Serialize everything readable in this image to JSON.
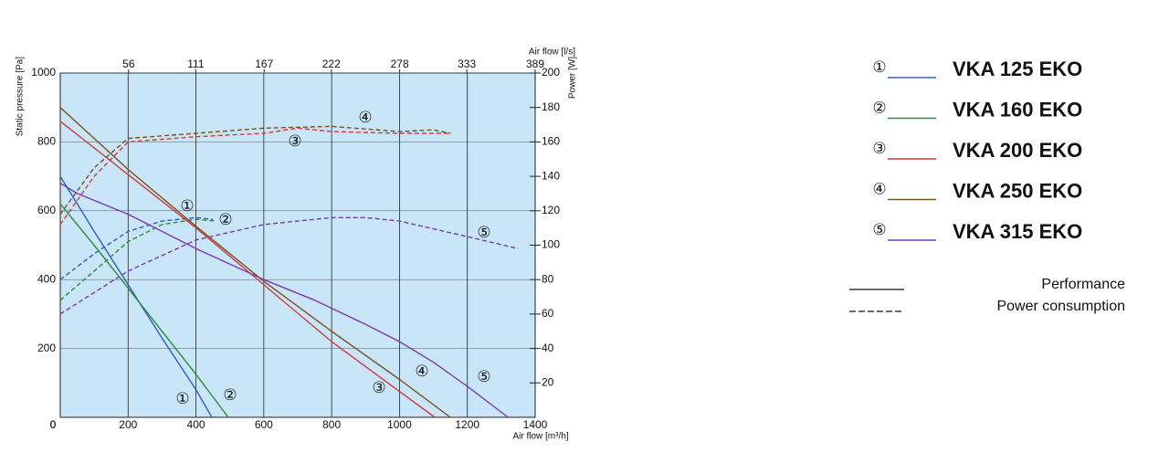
{
  "chart_data": {
    "type": "line",
    "x_label": "Air flow [m³/h]",
    "x2_label": "Air flow [l/s]",
    "y_label": "Static pressure [Pa]",
    "y2_label": "Power [W]",
    "xlim": [
      0,
      1400
    ],
    "xticks": [
      0,
      200,
      400,
      600,
      800,
      1000,
      1200,
      1400
    ],
    "x2lim": [
      0,
      389
    ],
    "x2ticks": [
      56,
      111,
      167,
      222,
      278,
      333,
      389
    ],
    "ylim": [
      0,
      1000
    ],
    "yticks": [
      200,
      400,
      600,
      800,
      1000
    ],
    "y2lim": [
      0,
      200
    ],
    "y2ticks": [
      20,
      40,
      60,
      80,
      100,
      120,
      140,
      160,
      180,
      200
    ],
    "grid": true,
    "background": "#c8e6f8",
    "series": [
      {
        "name": "VKA 125 EKO",
        "symbol": "①",
        "color": "#2f5dbf",
        "performance": {
          "x": [
            0,
            100,
            200,
            300,
            400,
            447
          ],
          "values": [
            700,
            540,
            385,
            230,
            80,
            0
          ]
        },
        "power": {
          "axis": "y2",
          "x": [
            0,
            100,
            200,
            300,
            400,
            450
          ],
          "values": [
            80,
            95,
            108,
            114,
            116,
            115
          ]
        }
      },
      {
        "name": "VKA 160 EKO",
        "symbol": "②",
        "color": "#2a8a3a",
        "performance": {
          "x": [
            0,
            100,
            200,
            300,
            400,
            495
          ],
          "values": [
            620,
            500,
            375,
            250,
            125,
            0
          ]
        },
        "power": {
          "axis": "y2",
          "x": [
            0,
            100,
            200,
            300,
            400,
            460
          ],
          "values": [
            68,
            85,
            102,
            112,
            115,
            114
          ]
        }
      },
      {
        "name": "VKA 200 EKO",
        "symbol": "③",
        "color": "#d03a3a",
        "performance": {
          "x": [
            0,
            200,
            400,
            600,
            800,
            1000,
            1104
          ],
          "values": [
            860,
            705,
            550,
            385,
            220,
            75,
            0
          ]
        },
        "power": {
          "axis": "y2",
          "x": [
            0,
            100,
            200,
            400,
            600,
            700,
            800,
            1000,
            1150
          ],
          "values": [
            112,
            140,
            160,
            163,
            165,
            168,
            166,
            165,
            165
          ]
        }
      },
      {
        "name": "VKA 250 EKO",
        "symbol": "④",
        "color": "#7a5020",
        "performance": {
          "x": [
            0,
            200,
            400,
            600,
            800,
            1000,
            1150
          ],
          "values": [
            900,
            720,
            555,
            395,
            250,
            110,
            0
          ]
        },
        "power": {
          "axis": "y2",
          "x": [
            0,
            100,
            200,
            400,
            600,
            800,
            1000,
            1100,
            1150
          ],
          "values": [
            118,
            145,
            162,
            165,
            168,
            169,
            166,
            167,
            165
          ]
        }
      },
      {
        "name": "VKA 315 EKO",
        "symbol": "⑤",
        "color": "#7a3aaa",
        "performance": {
          "x": [
            0,
            50,
            200,
            400,
            600,
            750,
            900,
            1000,
            1100,
            1200,
            1320
          ],
          "values": [
            680,
            650,
            590,
            490,
            400,
            340,
            270,
            220,
            160,
            90,
            0
          ]
        },
        "power": {
          "axis": "y2",
          "x": [
            0,
            200,
            400,
            600,
            800,
            900,
            1000,
            1200,
            1350
          ],
          "values": [
            60,
            85,
            103,
            112,
            116,
            116,
            114,
            105,
            98
          ]
        }
      }
    ],
    "line_styles": [
      {
        "label": "Performance",
        "dashed": false
      },
      {
        "label": "Power consumption",
        "dashed": true
      }
    ]
  }
}
